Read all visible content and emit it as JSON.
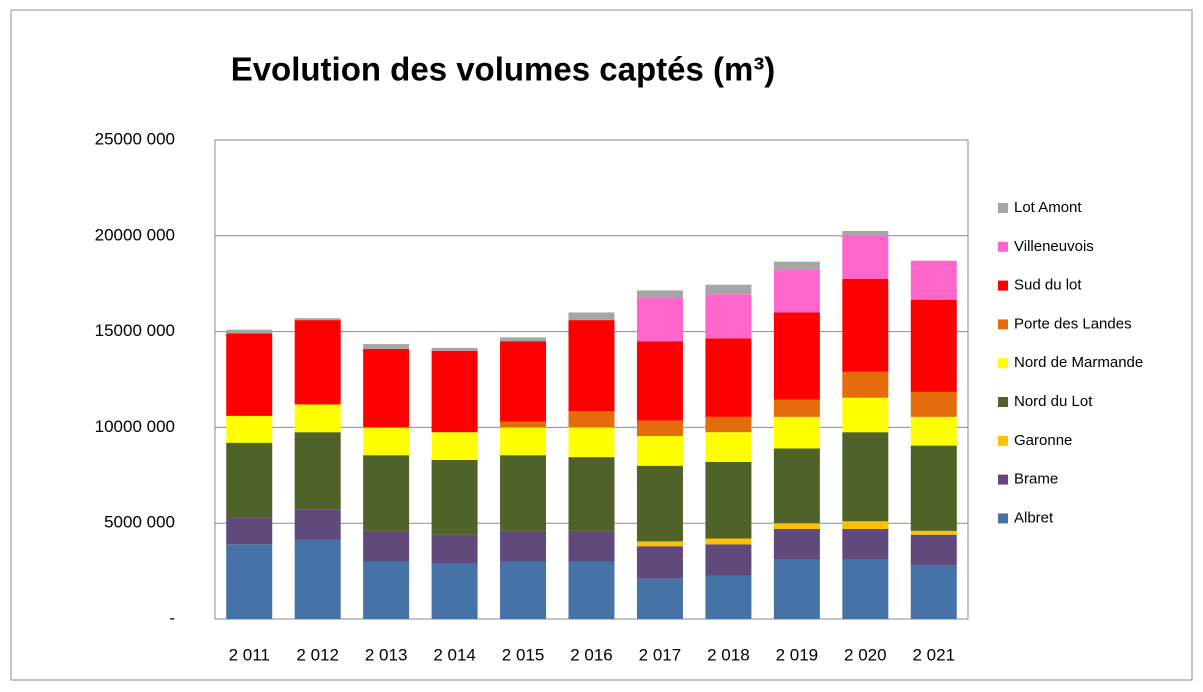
{
  "chart_data": {
    "type": "stacked_bar",
    "title": "Evolution des volumes captés (m³)",
    "categories": [
      "2 011",
      "2 012",
      "2 013",
      "2 014",
      "2 015",
      "2 016",
      "2 017",
      "2 018",
      "2 019",
      "2 020",
      "2 021"
    ],
    "series": [
      {
        "name": "Albret",
        "color": "#4572a7",
        "values": [
          3900000,
          4150000,
          3000000,
          2900000,
          3000000,
          3000000,
          2100000,
          2250000,
          3100000,
          3100000,
          2800000
        ]
      },
      {
        "name": "Brame",
        "color": "#604a7b",
        "values": [
          1400000,
          1550000,
          1600000,
          1500000,
          1600000,
          1600000,
          1700000,
          1650000,
          1600000,
          1600000,
          1600000
        ]
      },
      {
        "name": "Garonne",
        "color": "#ffc000",
        "values": [
          0,
          0,
          0,
          0,
          0,
          0,
          250000,
          300000,
          300000,
          400000,
          200000
        ]
      },
      {
        "name": "Nord du Lot",
        "color": "#4f6228",
        "values": [
          3900000,
          4050000,
          3950000,
          3900000,
          3950000,
          3850000,
          3950000,
          4000000,
          3900000,
          4650000,
          4450000
        ]
      },
      {
        "name": "Nord de Marmande",
        "color": "#ffff00",
        "values": [
          1400000,
          1450000,
          1450000,
          1450000,
          1450000,
          1550000,
          1550000,
          1550000,
          1650000,
          1800000,
          1500000
        ]
      },
      {
        "name": "Porte des Landes",
        "color": "#e46c0a",
        "values": [
          0,
          0,
          0,
          0,
          300000,
          850000,
          800000,
          800000,
          900000,
          1350000,
          1300000
        ]
      },
      {
        "name": "Sud du lot",
        "color": "#ff0000",
        "values": [
          4300000,
          4400000,
          4100000,
          4250000,
          4200000,
          4750000,
          4150000,
          4100000,
          4550000,
          4850000,
          4800000
        ]
      },
      {
        "name": "Villeneuvois",
        "color": "#ff66cc",
        "values": [
          0,
          0,
          0,
          0,
          0,
          0,
          2250000,
          2300000,
          2250000,
          2250000,
          2050000
        ]
      },
      {
        "name": "Lot Amont",
        "color": "#a6a6a6",
        "values": [
          200000,
          100000,
          250000,
          150000,
          200000,
          400000,
          400000,
          500000,
          400000,
          250000,
          0
        ]
      }
    ],
    "ylim": [
      0,
      25000000
    ],
    "yticks": [
      {
        "value": 0,
        "label": "-"
      },
      {
        "value": 5000000,
        "label": "5000 000"
      },
      {
        "value": 10000000,
        "label": "10000 000"
      },
      {
        "value": 15000000,
        "label": "15000 000"
      },
      {
        "value": 20000000,
        "label": "20000 000"
      },
      {
        "value": 25000000,
        "label": "25000 000"
      }
    ],
    "grid": true,
    "legend": "right"
  }
}
